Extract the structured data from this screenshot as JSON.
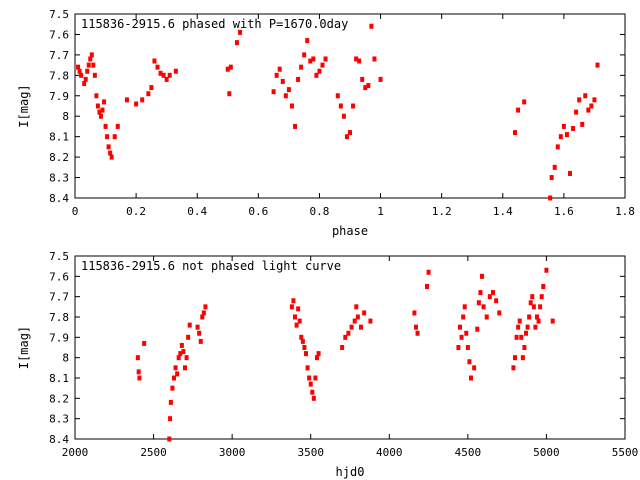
{
  "chart_data": [
    {
      "type": "scatter",
      "title": "115836-2915.6 phased with P=1670.0day",
      "xlabel": "phase",
      "ylabel": "I[mag]",
      "xlim": [
        0,
        1.8
      ],
      "ylim": [
        7.5,
        8.4
      ],
      "y_inverted": true,
      "grid": false,
      "color": "#ff0000",
      "x_ticks": [
        "0",
        "0.2",
        "0.4",
        "0.6",
        "0.8",
        "1",
        "1.2",
        "1.4",
        "1.6",
        "1.8"
      ],
      "y_ticks": [
        "7.5",
        "7.6",
        "7.7",
        "7.8",
        "7.9",
        "8",
        "8.1",
        "8.2",
        "8.3",
        "8.4"
      ],
      "series": [
        {
          "x": [
            0.01,
            0.015,
            0.02,
            0.03,
            0.035,
            0.04,
            0.045,
            0.05,
            0.055,
            0.06,
            0.065,
            0.07,
            0.075,
            0.08,
            0.085,
            0.09,
            0.095,
            0.1,
            0.105,
            0.11,
            0.115,
            0.12,
            0.13,
            0.14,
            0.17,
            0.2,
            0.22,
            0.24,
            0.25,
            0.26,
            0.27,
            0.28,
            0.29,
            0.3,
            0.31,
            0.33,
            0.5,
            0.505,
            0.51,
            0.53,
            0.54,
            0.65,
            0.66,
            0.67,
            0.68,
            0.69,
            0.7,
            0.71,
            0.72,
            0.73,
            0.74,
            0.75,
            0.76,
            0.77,
            0.78,
            0.79,
            0.8,
            0.81,
            0.82,
            0.86,
            0.87,
            0.88,
            0.89,
            0.9,
            0.91,
            0.92,
            0.93,
            0.94,
            0.95,
            0.96,
            0.97,
            0.98,
            1.0,
            1.44,
            1.45,
            1.47,
            1.555,
            1.56,
            1.57,
            1.58,
            1.59,
            1.6,
            1.61,
            1.62,
            1.63,
            1.64,
            1.65,
            1.66,
            1.67,
            1.68,
            1.69,
            1.7,
            1.71
          ],
          "y": [
            7.76,
            7.78,
            7.8,
            7.84,
            7.82,
            7.78,
            7.75,
            7.72,
            7.7,
            7.75,
            7.8,
            7.9,
            7.95,
            7.98,
            8.0,
            7.97,
            7.93,
            8.05,
            8.1,
            8.15,
            8.18,
            8.2,
            8.1,
            8.05,
            7.92,
            7.94,
            7.92,
            7.89,
            7.86,
            7.73,
            7.76,
            7.79,
            7.8,
            7.82,
            7.8,
            7.78,
            7.77,
            7.89,
            7.76,
            7.64,
            7.59,
            7.88,
            7.8,
            7.77,
            7.83,
            7.9,
            7.87,
            7.95,
            8.05,
            7.82,
            7.76,
            7.7,
            7.63,
            7.73,
            7.72,
            7.8,
            7.78,
            7.75,
            7.72,
            7.9,
            7.95,
            8.0,
            8.1,
            8.08,
            7.95,
            7.72,
            7.73,
            7.82,
            7.86,
            7.85,
            7.56,
            7.72,
            7.82,
            8.08,
            7.97,
            7.93,
            8.4,
            8.3,
            8.25,
            8.15,
            8.1,
            8.05,
            8.09,
            8.28,
            8.06,
            7.98,
            7.92,
            8.04,
            7.9,
            7.97,
            7.95,
            7.92,
            7.75
          ],
          "marker": "dot"
        }
      ]
    },
    {
      "type": "scatter",
      "title": "115836-2915.6 not phased light curve",
      "xlabel": "hjd0",
      "ylabel": "I[mag]",
      "xlim": [
        2000,
        5500
      ],
      "ylim": [
        7.5,
        8.4
      ],
      "y_inverted": true,
      "grid": false,
      "color": "#ff0000",
      "x_ticks": [
        "2000",
        "2500",
        "3000",
        "3500",
        "4000",
        "4500",
        "5000",
        "5500"
      ],
      "y_ticks": [
        "7.5",
        "7.6",
        "7.7",
        "7.8",
        "7.9",
        "8",
        "8.1",
        "8.2",
        "8.3",
        "8.4"
      ],
      "series": [
        {
          "x": [
            2400,
            2405,
            2410,
            2440,
            2600,
            2605,
            2610,
            2620,
            2630,
            2640,
            2650,
            2660,
            2670,
            2680,
            2690,
            2700,
            2710,
            2720,
            2730,
            2780,
            2790,
            2800,
            2810,
            2820,
            2830,
            3380,
            3390,
            3400,
            3410,
            3420,
            3430,
            3440,
            3450,
            3460,
            3470,
            3480,
            3490,
            3500,
            3510,
            3520,
            3530,
            3540,
            3550,
            3700,
            3720,
            3740,
            3760,
            3780,
            3790,
            3800,
            3820,
            3840,
            3880,
            4160,
            4170,
            4180,
            4240,
            4250,
            4440,
            4450,
            4460,
            4470,
            4480,
            4490,
            4500,
            4510,
            4520,
            4540,
            4560,
            4570,
            4580,
            4590,
            4600,
            4620,
            4640,
            4660,
            4680,
            4700,
            4790,
            4800,
            4810,
            4820,
            4830,
            4840,
            4850,
            4860,
            4870,
            4880,
            4890,
            4900,
            4910,
            4920,
            4930,
            4940,
            4950,
            4960,
            4970,
            4980,
            5000,
            5040
          ],
          "y": [
            8.0,
            8.07,
            8.1,
            7.93,
            8.4,
            8.3,
            8.22,
            8.15,
            8.1,
            8.05,
            8.08,
            8.0,
            7.98,
            7.94,
            7.97,
            8.05,
            8.0,
            7.9,
            7.84,
            7.85,
            7.88,
            7.92,
            7.8,
            7.78,
            7.75,
            7.75,
            7.72,
            7.8,
            7.84,
            7.76,
            7.82,
            7.9,
            7.92,
            7.95,
            7.98,
            8.05,
            8.1,
            8.13,
            8.17,
            8.2,
            8.1,
            8.0,
            7.98,
            7.95,
            7.9,
            7.88,
            7.85,
            7.82,
            7.75,
            7.8,
            7.85,
            7.78,
            7.82,
            7.78,
            7.85,
            7.88,
            7.65,
            7.58,
            7.95,
            7.85,
            7.9,
            7.8,
            7.75,
            7.88,
            7.95,
            8.02,
            8.1,
            8.05,
            7.86,
            7.73,
            7.68,
            7.6,
            7.75,
            7.8,
            7.7,
            7.68,
            7.72,
            7.78,
            8.05,
            8.0,
            7.9,
            7.85,
            7.82,
            7.9,
            8.0,
            7.95,
            7.88,
            7.85,
            7.8,
            7.73,
            7.7,
            7.75,
            7.85,
            7.8,
            7.82,
            7.75,
            7.7,
            7.65,
            7.57,
            7.82
          ],
          "marker": "dot"
        }
      ]
    }
  ]
}
